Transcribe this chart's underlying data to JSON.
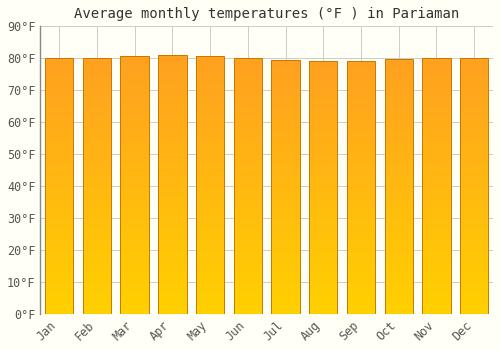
{
  "title": "Average monthly temperatures (°F ) in Pariaman",
  "months": [
    "Jan",
    "Feb",
    "Mar",
    "Apr",
    "May",
    "Jun",
    "Jul",
    "Aug",
    "Sep",
    "Oct",
    "Nov",
    "Dec"
  ],
  "values": [
    80.1,
    80.1,
    80.6,
    81.0,
    80.8,
    80.1,
    79.3,
    79.0,
    79.2,
    79.7,
    80.1,
    80.1
  ],
  "ylim": [
    0,
    90
  ],
  "yticks": [
    0,
    10,
    20,
    30,
    40,
    50,
    60,
    70,
    80,
    90
  ],
  "bar_color_bottom": "#FFD000",
  "bar_color_top": "#FFA020",
  "bar_edge_color": "#C87800",
  "background_color": "#FFFFF5",
  "grid_color": "#CCCCCC",
  "title_fontsize": 10,
  "tick_fontsize": 8.5,
  "font_family": "monospace",
  "gradient_steps": 100
}
